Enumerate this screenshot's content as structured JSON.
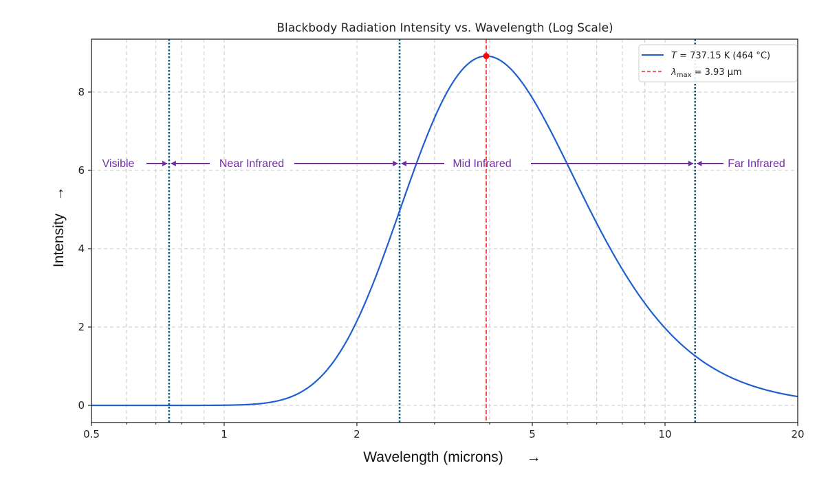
{
  "chart_data": {
    "type": "line",
    "title": "Blackbody Radiation Intensity vs. Wavelength (Log Scale)",
    "xlabel": "Wavelength (microns)",
    "xlabel_arrow": "→",
    "ylabel": "Intensity",
    "ylabel_arrow": "→",
    "xscale": "log",
    "xlim": [
      0.5,
      20
    ],
    "ylim": [
      -0.45,
      9.4
    ],
    "xticks": [
      0.5,
      1,
      2,
      5,
      10,
      20
    ],
    "xtick_labels": [
      "0.5",
      "1",
      "2",
      "5",
      "10",
      "20"
    ],
    "yticks": [
      0,
      2,
      4,
      6,
      8
    ],
    "ytick_labels": [
      "0",
      "2",
      "4",
      "6",
      "8"
    ],
    "grid": true,
    "legend_position": "top-right",
    "temperature_K": 737.15,
    "peak_intensity": 8.92,
    "series": [
      {
        "name": "T = 737.15 K (464 °C)",
        "color": "#1f5fd0",
        "style": "solid",
        "model": "planck",
        "x": [
          0.5,
          0.75,
          1.0,
          1.25,
          1.5,
          2.0,
          2.5,
          3.0,
          3.93,
          5.0,
          6.0,
          8.0,
          10.0,
          11.7,
          15.0,
          20.0
        ],
        "y": [
          0.0,
          0.0,
          0.01,
          0.12,
          0.5,
          2.2,
          4.8,
          7.0,
          8.92,
          8.1,
          6.2,
          3.4,
          1.95,
          1.32,
          0.62,
          0.23
        ]
      }
    ],
    "peak_line": {
      "label_prefix": "λ",
      "label_sub": "max",
      "label_value": "= 3.93 μm",
      "x": 3.93,
      "color": "#ff2020",
      "style": "dashed"
    },
    "peak_marker": {
      "x": 3.93,
      "y": 8.92,
      "color": "#ff0000"
    },
    "boundaries": [
      {
        "x": 0.75,
        "color": "#0b5a7a"
      },
      {
        "x": 2.5,
        "color": "#0b5a7a"
      },
      {
        "x": 11.7,
        "color": "#0b5a7a"
      }
    ],
    "regions": [
      {
        "label": "Visible",
        "y": 6.2
      },
      {
        "label": "Near Infrared",
        "y": 6.2
      },
      {
        "label": "Mid Infrared",
        "y": 6.2
      },
      {
        "label": "Far Infrared",
        "y": 6.2
      }
    ],
    "region_color": "#7030a0",
    "legend": [
      {
        "label_italic": "T",
        "label_rest": " = 737.15 K (464 °C)",
        "color": "#1f5fd0",
        "style": "solid"
      },
      {
        "label_italic": "λ",
        "label_sub": "max",
        "label_rest": " = 3.93 μm",
        "color": "#ff2020",
        "style": "dashed"
      }
    ]
  }
}
